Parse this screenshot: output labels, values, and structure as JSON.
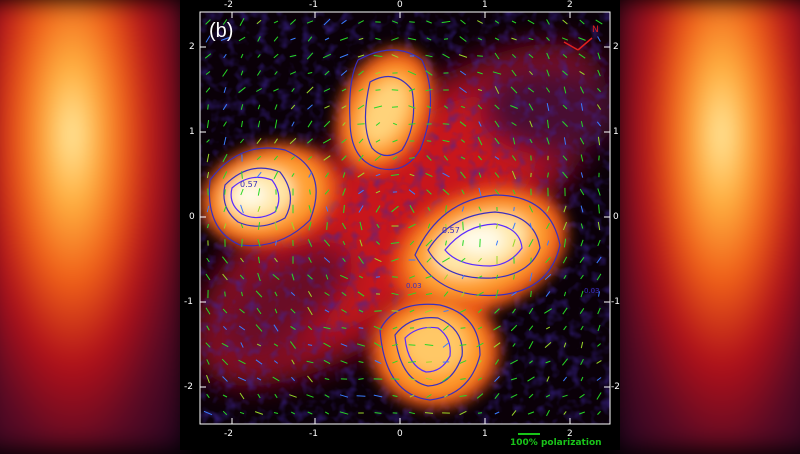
{
  "panel_label": "(b)",
  "x_ticks": [
    "-2",
    "-1",
    "0",
    "1",
    "2"
  ],
  "y_ticks": [
    "2",
    "1",
    "0",
    "-1",
    "-2"
  ],
  "contour_labels": [
    "0.57",
    "0.57",
    "0.03",
    "0.03"
  ],
  "compass_label": "N",
  "scale_bar_label": "100% polarization",
  "colors": {
    "background": "#000000",
    "hot_core": "#fffbe8",
    "vectors": "#27d827",
    "contours": "#3a2fbf",
    "compass": "#e02020"
  }
}
